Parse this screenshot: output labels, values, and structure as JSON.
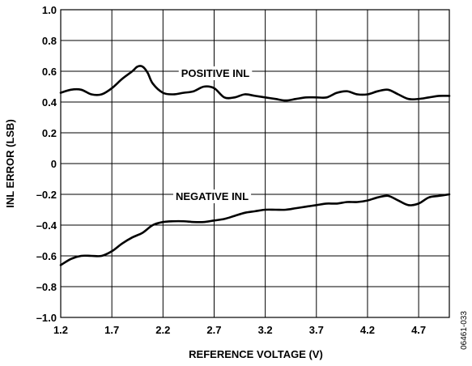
{
  "chart_data": {
    "type": "line",
    "xlabel": "REFERENCE VOLTAGE (V)",
    "ylabel": "INL ERROR (LSB)",
    "xlim": [
      1.2,
      5.0
    ],
    "ylim": [
      -1.0,
      1.0
    ],
    "x_ticks": [
      1.2,
      1.7,
      2.2,
      2.7,
      3.2,
      3.7,
      4.2,
      4.7
    ],
    "x_tick_labels": [
      "1.2",
      "1.7",
      "2.2",
      "2.7",
      "3.2",
      "3.7",
      "4.2",
      "4.7"
    ],
    "y_ticks": [
      1.0,
      0.8,
      0.6,
      0.4,
      0.2,
      0,
      -0.2,
      -0.4,
      -0.6,
      -0.8,
      -1.0
    ],
    "y_tick_labels": [
      "1.0",
      "0.8",
      "0.6",
      "0.4",
      "0.2",
      "0",
      "–0.2",
      "–0.4",
      "–0.6",
      "–0.8",
      "–1.0"
    ],
    "grid": true,
    "series": [
      {
        "name": "POSITIVE INL",
        "color": "#000000",
        "x": [
          1.2,
          1.3,
          1.4,
          1.5,
          1.6,
          1.7,
          1.8,
          1.9,
          1.95,
          2.0,
          2.05,
          2.1,
          2.2,
          2.3,
          2.4,
          2.5,
          2.6,
          2.7,
          2.8,
          2.9,
          3.0,
          3.1,
          3.2,
          3.3,
          3.4,
          3.5,
          3.6,
          3.7,
          3.8,
          3.9,
          4.0,
          4.1,
          4.2,
          4.3,
          4.4,
          4.5,
          4.6,
          4.7,
          4.8,
          4.9,
          5.0
        ],
        "y": [
          0.46,
          0.48,
          0.48,
          0.45,
          0.45,
          0.49,
          0.55,
          0.6,
          0.63,
          0.63,
          0.59,
          0.52,
          0.46,
          0.45,
          0.46,
          0.47,
          0.5,
          0.49,
          0.43,
          0.43,
          0.45,
          0.44,
          0.43,
          0.42,
          0.41,
          0.42,
          0.43,
          0.43,
          0.43,
          0.46,
          0.47,
          0.45,
          0.45,
          0.47,
          0.48,
          0.45,
          0.42,
          0.42,
          0.43,
          0.44,
          0.44
        ]
      },
      {
        "name": "NEGATIVE INL",
        "color": "#000000",
        "x": [
          1.2,
          1.3,
          1.4,
          1.5,
          1.6,
          1.7,
          1.8,
          1.9,
          2.0,
          2.1,
          2.2,
          2.3,
          2.4,
          2.5,
          2.6,
          2.7,
          2.8,
          2.9,
          3.0,
          3.1,
          3.2,
          3.3,
          3.4,
          3.5,
          3.6,
          3.7,
          3.8,
          3.9,
          4.0,
          4.1,
          4.2,
          4.3,
          4.4,
          4.5,
          4.6,
          4.7,
          4.8,
          4.9,
          5.0
        ],
        "y": [
          -0.66,
          -0.62,
          -0.6,
          -0.6,
          -0.6,
          -0.57,
          -0.52,
          -0.48,
          -0.45,
          -0.4,
          -0.38,
          -0.375,
          -0.375,
          -0.38,
          -0.38,
          -0.37,
          -0.36,
          -0.34,
          -0.32,
          -0.31,
          -0.3,
          -0.3,
          -0.3,
          -0.29,
          -0.28,
          -0.27,
          -0.26,
          -0.26,
          -0.25,
          -0.25,
          -0.24,
          -0.22,
          -0.21,
          -0.24,
          -0.27,
          -0.26,
          -0.22,
          -0.21,
          -0.2
        ]
      }
    ],
    "annotations": [
      "POSITIVE INL",
      "NEGATIVE INL"
    ],
    "figure_id": "06461-033"
  }
}
